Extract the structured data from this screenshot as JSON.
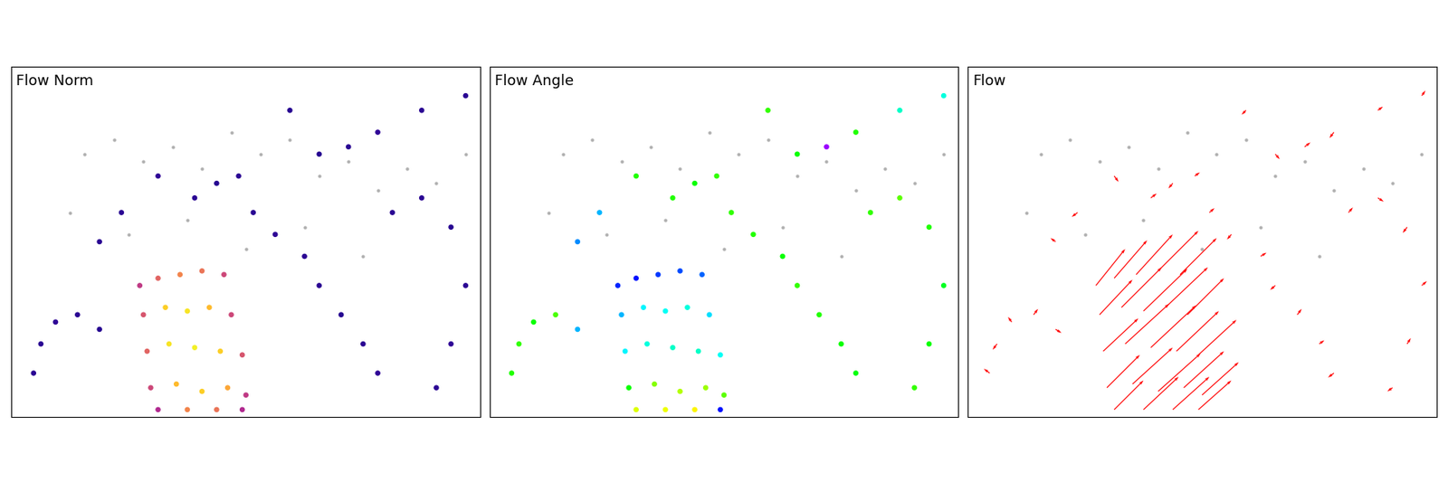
{
  "chart_data": [
    {
      "type": "scatter",
      "title": "Flow Norm",
      "color": "plasma",
      "value_range": [
        0,
        100
      ],
      "xlim": [
        0,
        640
      ],
      "ylim": [
        480,
        0
      ],
      "xticks": [],
      "yticks": [],
      "tick_labels": false,
      "background": {
        "color": "#b0b0b0",
        "x": [
          100,
          140,
          180,
          220,
          260,
          300,
          340,
          380,
          420,
          460,
          500,
          540,
          580,
          620,
          80,
          160,
          240,
          320,
          400,
          480
        ],
        "y": [
          120,
          100,
          130,
          110,
          140,
          90,
          120,
          100,
          150,
          130,
          170,
          140,
          160,
          120,
          200,
          230,
          210,
          250,
          220,
          260
        ]
      },
      "x": [
        30,
        40,
        60,
        90,
        120,
        330,
        360,
        400,
        420,
        450,
        480,
        500,
        520,
        560,
        600,
        620,
        600,
        580,
        250,
        280,
        310,
        200,
        150,
        120,
        420,
        460,
        500,
        560,
        620,
        380,
        175,
        200,
        230,
        260,
        290,
        180,
        210,
        240,
        270,
        300,
        185,
        215,
        250,
        285,
        315,
        190,
        225,
        260,
        295,
        320,
        200,
        240,
        280,
        315
      ],
      "y": [
        420,
        380,
        350,
        340,
        360,
        200,
        230,
        260,
        300,
        340,
        380,
        420,
        200,
        180,
        220,
        300,
        380,
        440,
        180,
        160,
        150,
        150,
        200,
        240,
        120,
        110,
        90,
        60,
        40,
        60,
        300,
        290,
        285,
        280,
        285,
        340,
        330,
        335,
        330,
        340,
        390,
        380,
        385,
        390,
        395,
        440,
        435,
        445,
        440,
        450,
        470,
        470,
        470,
        470
      ],
      "values": [
        5,
        5,
        6,
        5,
        4,
        5,
        6,
        5,
        5,
        4,
        5,
        6,
        5,
        5,
        4,
        5,
        6,
        5,
        5,
        4,
        5,
        6,
        5,
        5,
        4,
        5,
        6,
        5,
        5,
        4,
        45,
        60,
        70,
        65,
        50,
        55,
        90,
        95,
        85,
        50,
        60,
        95,
        98,
        90,
        55,
        50,
        85,
        90,
        80,
        45,
        40,
        70,
        65,
        40
      ]
    },
    {
      "type": "scatter",
      "title": "Flow Angle",
      "color": "hsv",
      "value_range": [
        0,
        360
      ],
      "xlim": [
        0,
        640
      ],
      "ylim": [
        480,
        0
      ],
      "xticks": [],
      "yticks": [],
      "tick_labels": false,
      "background": {
        "color": "#b0b0b0",
        "x": [
          100,
          140,
          180,
          220,
          260,
          300,
          340,
          380,
          420,
          460,
          500,
          540,
          580,
          620,
          80,
          160,
          240,
          320,
          400,
          480
        ],
        "y": [
          120,
          100,
          130,
          110,
          140,
          90,
          120,
          100,
          150,
          130,
          170,
          140,
          160,
          120,
          200,
          230,
          210,
          250,
          220,
          260
        ]
      },
      "x": [
        30,
        40,
        60,
        90,
        120,
        330,
        360,
        400,
        420,
        450,
        480,
        500,
        520,
        560,
        600,
        620,
        600,
        580,
        250,
        280,
        310,
        200,
        150,
        120,
        420,
        460,
        500,
        560,
        620,
        380,
        175,
        200,
        230,
        260,
        290,
        180,
        210,
        240,
        270,
        300,
        185,
        215,
        250,
        285,
        315,
        190,
        225,
        260,
        295,
        320,
        200,
        240,
        280,
        315
      ],
      "y": [
        420,
        380,
        350,
        340,
        360,
        200,
        230,
        260,
        300,
        340,
        380,
        420,
        200,
        180,
        220,
        300,
        380,
        440,
        180,
        160,
        150,
        150,
        200,
        240,
        120,
        110,
        90,
        60,
        40,
        60,
        300,
        290,
        285,
        280,
        285,
        340,
        330,
        335,
        330,
        340,
        390,
        380,
        385,
        390,
        395,
        440,
        435,
        445,
        440,
        450,
        470,
        470,
        470,
        470
      ],
      "values": [
        115,
        110,
        120,
        105,
        200,
        110,
        115,
        120,
        110,
        115,
        120,
        125,
        110,
        100,
        115,
        130,
        120,
        110,
        115,
        120,
        110,
        115,
        200,
        210,
        120,
        280,
        115,
        170,
        175,
        110,
        235,
        240,
        230,
        225,
        220,
        200,
        185,
        180,
        175,
        190,
        185,
        175,
        170,
        170,
        180,
        120,
        90,
        80,
        85,
        100,
        70,
        65,
        60,
        240
      ]
    },
    {
      "type": "quiver",
      "title": "Flow",
      "color": "red",
      "xlim": [
        0,
        640
      ],
      "ylim": [
        480,
        0
      ],
      "xticks": [],
      "yticks": [],
      "tick_labels": false,
      "background": {
        "color": "#b0b0b0",
        "x": [
          100,
          140,
          180,
          220,
          260,
          300,
          340,
          380,
          420,
          460,
          500,
          540,
          580,
          620,
          80,
          160,
          240,
          320,
          400,
          480
        ],
        "y": [
          120,
          100,
          130,
          110,
          140,
          90,
          120,
          100,
          150,
          130,
          170,
          140,
          160,
          120,
          200,
          230,
          210,
          250,
          220,
          260
        ]
      },
      "x": [
        30,
        40,
        60,
        90,
        120,
        330,
        360,
        400,
        420,
        450,
        480,
        500,
        520,
        560,
        600,
        620,
        600,
        580,
        250,
        280,
        310,
        200,
        150,
        120,
        420,
        460,
        500,
        560,
        620,
        380,
        175,
        200,
        230,
        260,
        290,
        180,
        210,
        240,
        270,
        300,
        185,
        215,
        250,
        285,
        315,
        190,
        225,
        260,
        295,
        320,
        200,
        240,
        280,
        315
      ],
      "y": [
        420,
        380,
        350,
        340,
        360,
        200,
        230,
        260,
        300,
        340,
        380,
        420,
        200,
        180,
        220,
        300,
        380,
        440,
        180,
        160,
        150,
        150,
        200,
        240,
        120,
        110,
        90,
        60,
        40,
        60,
        300,
        290,
        285,
        280,
        285,
        340,
        330,
        335,
        330,
        340,
        390,
        380,
        385,
        390,
        395,
        440,
        435,
        445,
        440,
        450,
        470,
        470,
        470,
        470
      ],
      "u": [
        -8,
        -6,
        -5,
        6,
        8,
        7,
        -6,
        8,
        -7,
        6,
        7,
        -8,
        6,
        8,
        -6,
        7,
        5,
        -7,
        8,
        -6,
        7,
        6,
        -8,
        -7,
        6,
        8,
        -6,
        7,
        5,
        -6,
        40,
        45,
        50,
        55,
        50,
        45,
        55,
        60,
        58,
        50,
        48,
        60,
        62,
        58,
        52,
        45,
        55,
        58,
        55,
        50,
        40,
        48,
        50,
        45
      ],
      "v": [
        -6,
        8,
        -7,
        -8,
        5,
        -6,
        7,
        -5,
        6,
        -8,
        -5,
        6,
        -7,
        5,
        8,
        -6,
        -8,
        5,
        -6,
        7,
        -5,
        8,
        6,
        -5,
        7,
        -6,
        8,
        -5,
        -7,
        6,
        -50,
        -52,
        -55,
        -55,
        -50,
        -48,
        -55,
        -58,
        -55,
        -50,
        -45,
        -55,
        -58,
        -55,
        -48,
        -45,
        -50,
        -52,
        -50,
        -45,
        -40,
        -45,
        -45,
        -40
      ]
    }
  ]
}
